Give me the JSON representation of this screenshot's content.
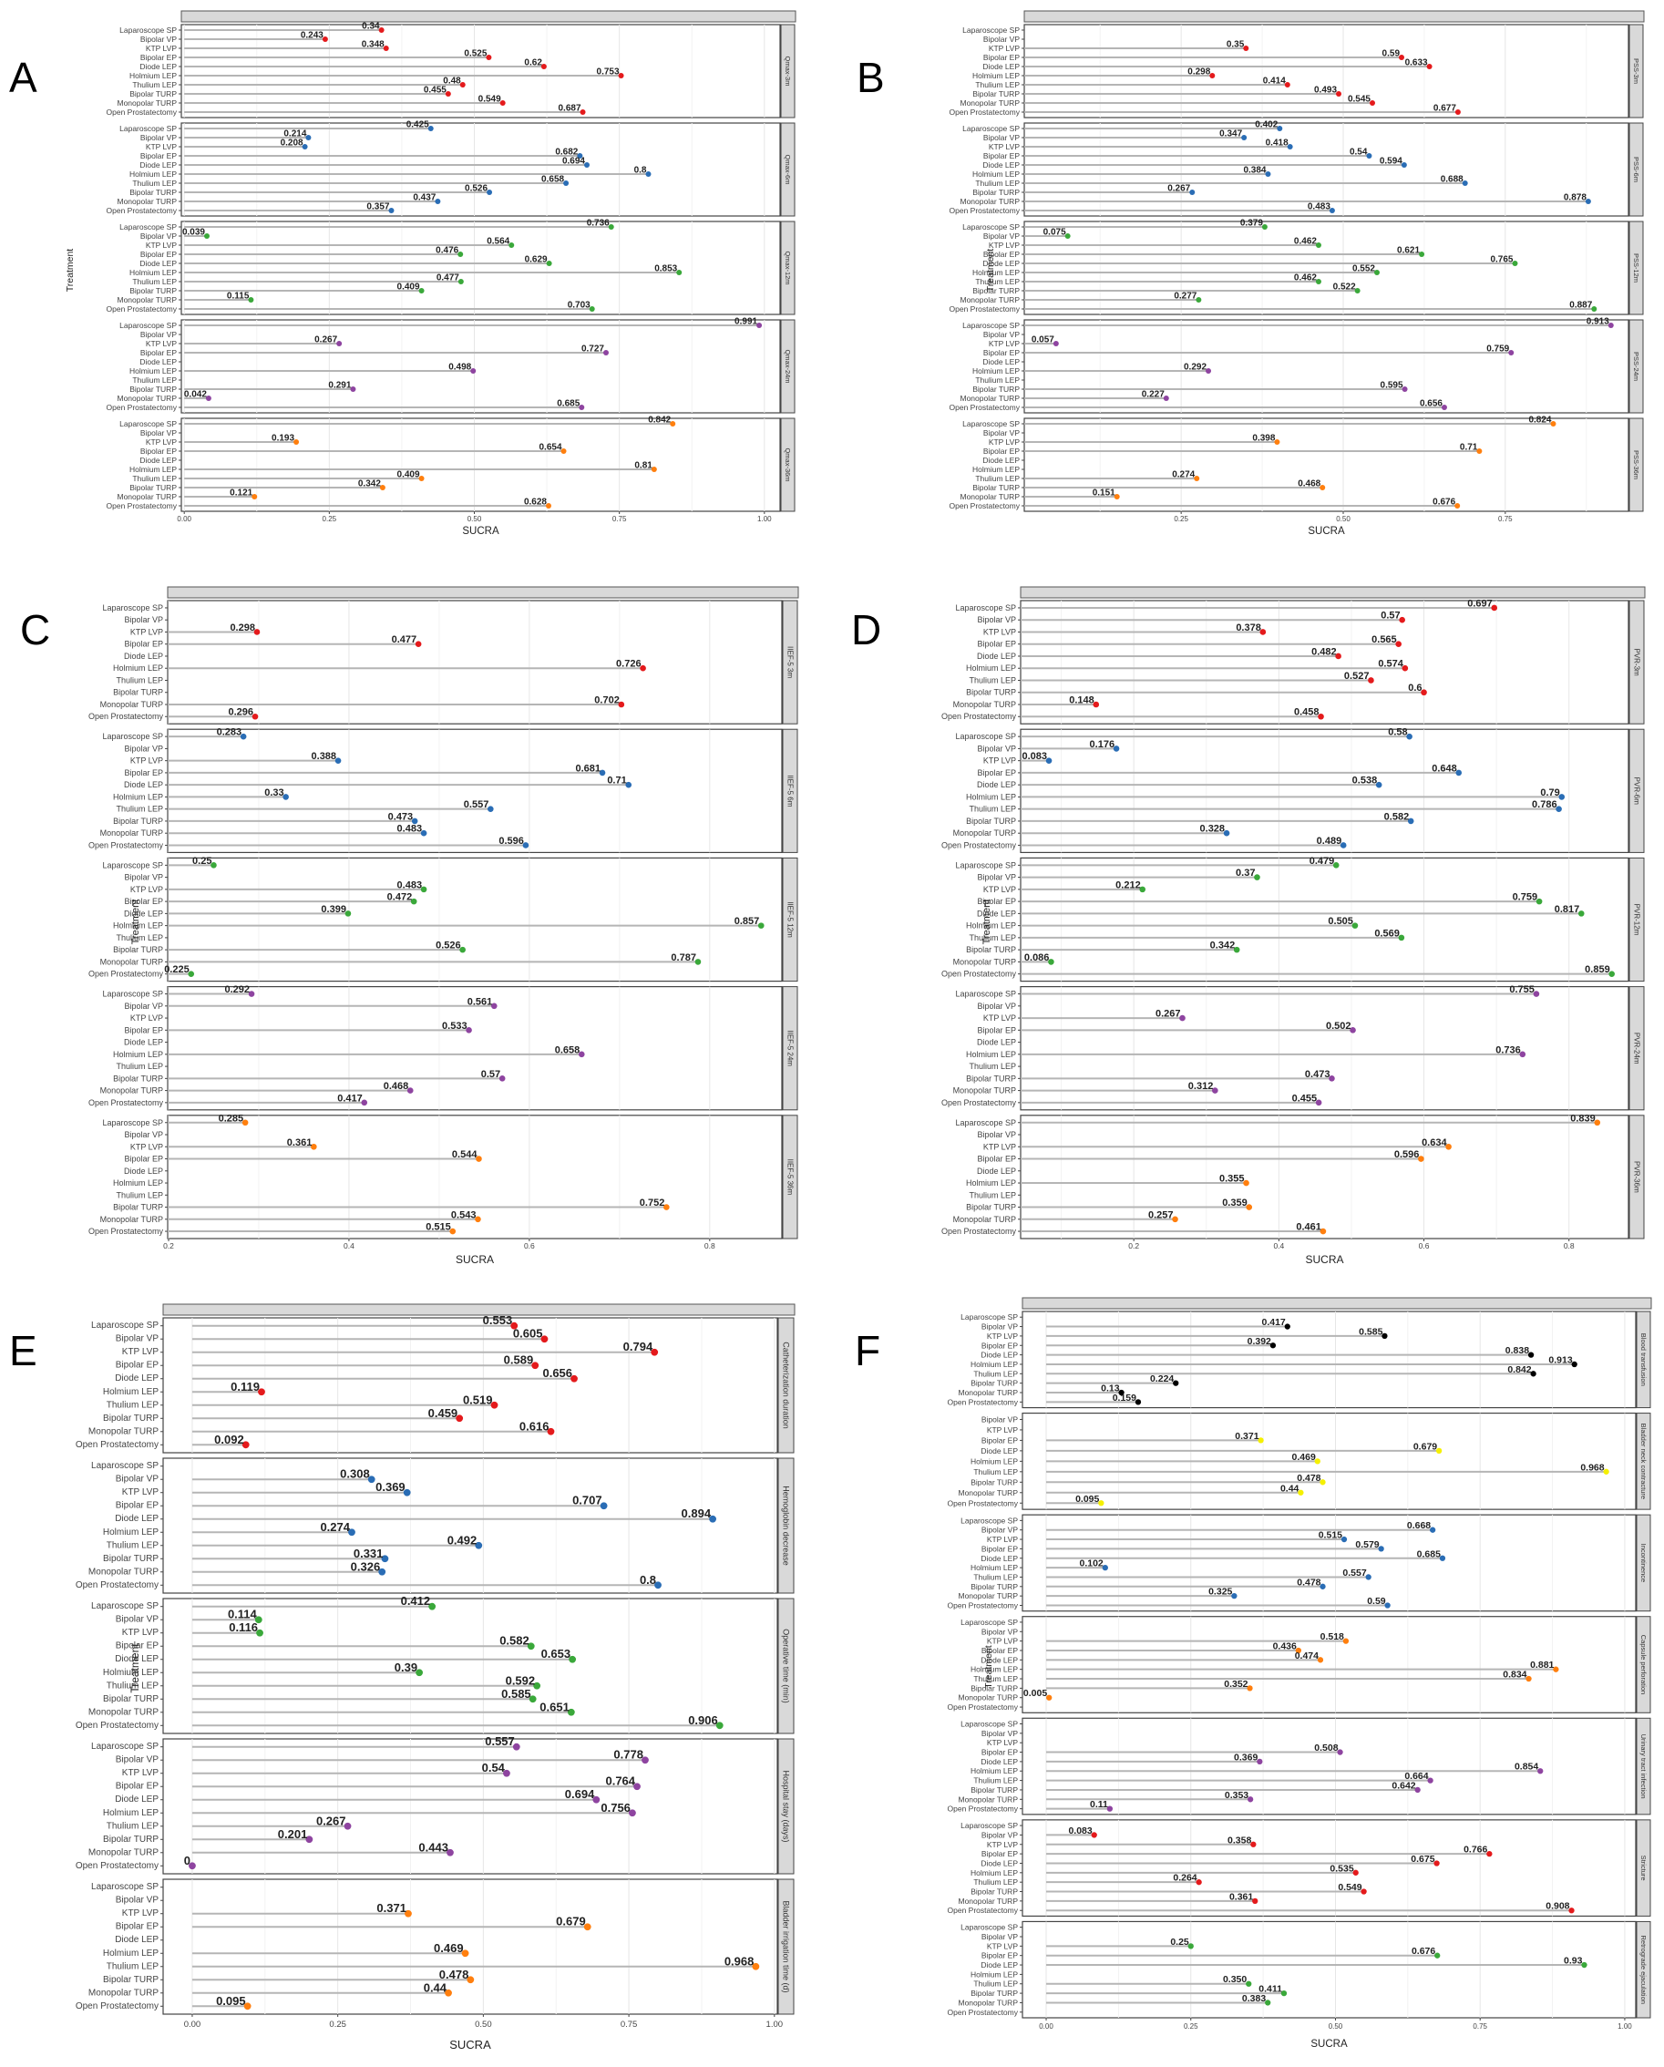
{
  "treatments": [
    "Laparoscope SP",
    "Bipolar VP",
    "KTP LVP",
    "Bipolar EP",
    "Diode LEP",
    "Holmium LEP",
    "Thulium LEP",
    "Bipolar TURP",
    "Monopolar TURP",
    "Open Prostatectomy"
  ],
  "chart_data": [
    {
      "panel": "A",
      "type": "lollipop",
      "xlabel": "SUCRA",
      "ylabel": "Treatment",
      "xlim": [
        -0.005,
        1.027
      ],
      "ticks": [
        "0.00",
        "0.25",
        "0.50",
        "0.75",
        "1.00"
      ],
      "grid": true,
      "facets": [
        {
          "label": "Qmax-3m",
          "color": "#e41a1c",
          "values": [
            "0.34",
            "0.243",
            "0.348",
            "0.525",
            "0.62",
            "0.753",
            "0.48",
            "0.455",
            "0.549",
            "0.687"
          ]
        },
        {
          "label": "Qmax-6m",
          "color": "#2a6db5",
          "values": [
            "0.425",
            "0.214",
            "0.208",
            "0.682",
            "0.694",
            "0.8",
            "0.658",
            "0.526",
            "0.437",
            "0.357"
          ]
        },
        {
          "label": "Qmax-12m",
          "color": "#3aa83a",
          "values": [
            "0.736",
            "0.039",
            "0.564",
            "0.476",
            "0.629",
            "0.853",
            "0.477",
            "0.409",
            "0.115",
            "0.703"
          ]
        },
        {
          "label": "Qmax-24m",
          "color": "#8e44a0",
          "values": [
            "0.991",
            null,
            "0.267",
            "0.727",
            null,
            "0.498",
            null,
            "0.291",
            "0.042",
            "0.685"
          ]
        },
        {
          "label": "Qmax-36m",
          "color": "#ff7f0e",
          "values": [
            "0.842",
            null,
            "0.193",
            "0.654",
            null,
            "0.81",
            "0.409",
            "0.342",
            "0.121",
            "0.628"
          ]
        }
      ]
    },
    {
      "panel": "B",
      "type": "lollipop",
      "xlabel": "SUCRA",
      "ylabel": "Treatment",
      "xlim": [
        0.008,
        0.94
      ],
      "ticks": [
        "0.25",
        "0.50",
        "0.75"
      ],
      "grid": true,
      "facets": [
        {
          "label": "PSS-3m",
          "color": "#e41a1c",
          "values": [
            null,
            null,
            "0.35",
            "0.59",
            "0.633",
            "0.298",
            "0.414",
            "0.493",
            "0.545",
            "0.677"
          ]
        },
        {
          "label": "PSS-6m",
          "color": "#2a6db5",
          "values": [
            "0.402",
            "0.347",
            "0.418",
            "0.54",
            "0.594",
            "0.384",
            "0.688",
            "0.267",
            "0.878",
            "0.483"
          ]
        },
        {
          "label": "PSS-12m",
          "color": "#3aa83a",
          "values": [
            "0.379",
            "0.075",
            "0.462",
            "0.621",
            "0.765",
            "0.552",
            "0.462",
            "0.522",
            "0.277",
            "0.887"
          ]
        },
        {
          "label": "PSS-24m",
          "color": "#8e44a0",
          "values": [
            "0.913",
            null,
            "0.057",
            "0.759",
            null,
            "0.292",
            null,
            "0.595",
            "0.227",
            "0.656"
          ]
        },
        {
          "label": "PSS-36m",
          "color": "#ff7f0e",
          "values": [
            "0.824",
            null,
            "0.398",
            "0.71",
            null,
            null,
            "0.274",
            "0.468",
            "0.151",
            "0.676"
          ]
        }
      ]
    },
    {
      "panel": "C",
      "type": "lollipop",
      "xlabel": "SUCRA",
      "ylabel": "Treatment",
      "xlim": [
        0.199,
        0.88
      ],
      "ticks": [
        "0.2",
        "0.4",
        "0.6",
        "0.8"
      ],
      "grid": true,
      "facets": [
        {
          "label": "IIEF-5 3m",
          "color": "#e41a1c",
          "values": [
            null,
            null,
            "0.298",
            "0.477",
            null,
            "0.726",
            null,
            null,
            "0.702",
            "0.296"
          ]
        },
        {
          "label": "IIEF-5 6m",
          "color": "#2a6db5",
          "values": [
            "0.283",
            null,
            "0.388",
            "0.681",
            "0.71",
            "0.33",
            "0.557",
            "0.473",
            "0.483",
            "0.596"
          ]
        },
        {
          "label": "IIEF-5 12m",
          "color": "#3aa83a",
          "values": [
            "0.25",
            null,
            "0.483",
            "0.472",
            "0.399",
            "0.857",
            null,
            "0.526",
            "0.787",
            "0.225"
          ]
        },
        {
          "label": "IIEF-5 24m",
          "color": "#8e44a0",
          "values": [
            "0.292",
            "0.561",
            null,
            "0.533",
            null,
            "0.658",
            null,
            "0.57",
            "0.468",
            "0.417"
          ]
        },
        {
          "label": "IIEF-5 36m",
          "color": "#ff7f0e",
          "values": [
            "0.285",
            null,
            "0.361",
            "0.544",
            null,
            null,
            null,
            "0.752",
            "0.543",
            "0.515"
          ]
        }
      ]
    },
    {
      "panel": "D",
      "type": "lollipop",
      "xlabel": "SUCRA",
      "ylabel": "Treatment",
      "xlim": [
        0.044,
        0.882
      ],
      "ticks": [
        "0.2",
        "0.4",
        "0.6",
        "0.8"
      ],
      "grid": true,
      "facets": [
        {
          "label": "PVR-3m",
          "color": "#e41a1c",
          "values": [
            "0.697",
            "0.57",
            "0.378",
            "0.565",
            "0.482",
            "0.574",
            "0.527",
            "0.6",
            "0.148",
            "0.458"
          ]
        },
        {
          "label": "PVR-6m",
          "color": "#2a6db5",
          "values": [
            "0.58",
            "0.176",
            "0.083",
            "0.648",
            "0.538",
            "0.79",
            "0.786",
            "0.582",
            "0.328",
            "0.489"
          ]
        },
        {
          "label": "PVR-12m",
          "color": "#3aa83a",
          "values": [
            "0.479",
            "0.37",
            "0.212",
            "0.759",
            "0.817",
            "0.505",
            "0.569",
            "0.342",
            "0.086",
            "0.859"
          ]
        },
        {
          "label": "PVR-24m",
          "color": "#8e44a0",
          "values": [
            "0.755",
            null,
            "0.267",
            "0.502",
            null,
            "0.736",
            null,
            "0.473",
            "0.312",
            "0.455"
          ]
        },
        {
          "label": "PVR-36m",
          "color": "#ff7f0e",
          "values": [
            "0.839",
            null,
            "0.634",
            "0.596",
            null,
            "0.355",
            null,
            "0.359",
            "0.257",
            "0.461"
          ]
        }
      ]
    },
    {
      "panel": "E",
      "type": "lollipop",
      "xlabel": "SUCRA",
      "ylabel": "Treatment",
      "xlim": [
        -0.05,
        1.005
      ],
      "ticks": [
        "0.00",
        "0.25",
        "0.50",
        "0.75",
        "1.00"
      ],
      "grid": true,
      "facets": [
        {
          "label": "Catheterization duration",
          "color": "#e41a1c",
          "values": [
            "0.553",
            "0.605",
            "0.794",
            "0.589",
            "0.656",
            "0.119",
            "0.519",
            "0.459",
            "0.616",
            "0.092"
          ]
        },
        {
          "label": "Hemoglobin decrease",
          "color": "#2a6db5",
          "values": [
            null,
            "0.308",
            "0.369",
            "0.707",
            "0.894",
            "0.274",
            "0.492",
            "0.331",
            "0.326",
            "0.8"
          ]
        },
        {
          "label": "Operative time (min)",
          "color": "#3aa83a",
          "values": [
            "0.412",
            "0.114",
            "0.116",
            "0.582",
            "0.653",
            "0.39",
            "0.592",
            "0.585",
            "0.651",
            "0.906"
          ]
        },
        {
          "label": "Hospital stay (days)",
          "color": "#8e44a0",
          "values": [
            "0.557",
            "0.778",
            "0.54",
            "0.764",
            "0.694",
            "0.756",
            "0.267",
            "0.201",
            "0.443",
            "0"
          ]
        },
        {
          "label": "Bladder irrigation time (d)",
          "color": "#ff7f0e",
          "values": [
            null,
            null,
            "0.371",
            "0.679",
            null,
            "0.469",
            "0.968",
            "0.478",
            "0.44",
            "0.095"
          ]
        }
      ]
    },
    {
      "panel": "F",
      "type": "lollipop",
      "xlabel": "SUCRA",
      "ylabel": "Treatment",
      "xlim": [
        -0.041,
        1.019
      ],
      "ticks": [
        "0.00",
        "0.25",
        "0.50",
        "0.75",
        "1.00"
      ],
      "grid": true,
      "facets": [
        {
          "label": "Blood transfusion",
          "color": "#000000",
          "values": [
            null,
            "0.417",
            "0.585",
            "0.392",
            "0.838",
            "0.913",
            "0.842",
            "0.224",
            "0.13",
            "0.159"
          ]
        },
        {
          "label": "Bladder neck contracture",
          "color": "#f5f000",
          "treatments": [
            "Bipolar VP",
            "KTP LVP",
            "Bipolar EP",
            "Diode LEP",
            "Holmium LEP",
            "Thulium LEP",
            "Bipolar TURP",
            "Monopolar TURP",
            "Open Prostatectomy"
          ],
          "values": [
            null,
            null,
            "0.371",
            "0.679",
            "0.469",
            "0.968",
            "0.478",
            "0.44",
            "0.095"
          ]
        },
        {
          "label": "Incontinence",
          "color": "#2a6db5",
          "values": [
            null,
            "0.668",
            "0.515",
            "0.579",
            "0.685",
            "0.102",
            "0.557",
            "0.478",
            "0.325",
            "0.59"
          ]
        },
        {
          "label": "Capsule perforation",
          "color": "#ff7f0e",
          "values": [
            null,
            null,
            "0.518",
            "0.436",
            "0.474",
            "0.881",
            "0.834",
            "0.352",
            "0.005",
            null
          ]
        },
        {
          "label": "Urinary tract infection",
          "color": "#8e44a0",
          "values": [
            null,
            null,
            null,
            "0.508",
            "0.369",
            "0.854",
            "0.664",
            "0.642",
            "0.353",
            "0.11"
          ]
        },
        {
          "label": "Stricture",
          "color": "#e41a1c",
          "values": [
            null,
            "0.083",
            "0.358",
            "0.766",
            "0.675",
            "0.535",
            "0.264",
            "0.549",
            "0.361",
            "0.908"
          ]
        },
        {
          "label": "Retrograde ejaculation",
          "color": "#3aa83a",
          "values": [
            null,
            null,
            "0.25",
            "0.676",
            "0.93",
            null,
            "0.350",
            "0.411",
            "0.383",
            null
          ]
        }
      ]
    }
  ]
}
